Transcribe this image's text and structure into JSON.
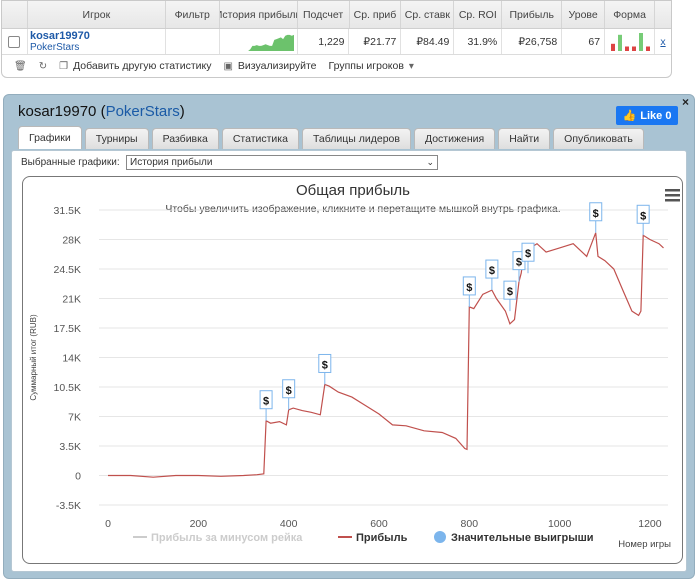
{
  "table": {
    "headers": [
      "Игрок",
      "Фильтр",
      "История прибыли",
      "Подсчет",
      "Ср. приб",
      "Ср. ставк",
      "Ср. ROI",
      "Прибыль",
      "Урове",
      "Форма"
    ],
    "row": {
      "player": "kosar19970",
      "site": "PokerStars",
      "filter": "",
      "count": "1,229",
      "avg_profit": "₽21.77",
      "avg_stake": "₽84.49",
      "avg_roi": "31.9%",
      "profit": "₽26,758",
      "level": "67",
      "close": "x"
    },
    "history_sparkline": [
      0,
      0,
      0,
      0,
      0,
      0,
      0,
      0,
      0,
      0,
      0,
      0,
      0.1,
      0.3,
      0.3,
      0.35,
      0.3,
      0.3,
      0.35,
      0.4,
      0.35,
      0.3,
      0.3,
      0.65,
      0.7,
      0.75,
      0.8,
      0.7,
      0.9,
      0.95,
      0.95,
      0.9,
      0.95
    ],
    "form_bars": [
      {
        "v": 0.4,
        "c": "#d44"
      },
      {
        "v": 0.9,
        "c": "#7c7"
      },
      {
        "v": 0.25,
        "c": "#d44"
      },
      {
        "v": 0.25,
        "c": "#d44"
      },
      {
        "v": 1.0,
        "c": "#7c7"
      },
      {
        "v": 0.25,
        "c": "#d44"
      }
    ]
  },
  "toolbar": {
    "add_stats": "Добавить другую статистику",
    "visualize": "Визуализируйте",
    "groups": "Группы игроков"
  },
  "panel": {
    "player": "kosar19970",
    "site": "PokerStars",
    "like": "Like 0",
    "close": "×",
    "tabs": [
      "Графики",
      "Турниры",
      "Разбивка",
      "Статистика",
      "Таблицы лидеров",
      "Достижения",
      "Найти",
      "Опубликовать"
    ],
    "active_tab": 0,
    "select_label": "Выбранные графики:",
    "select_value": "История прибыли"
  },
  "chart_data": {
    "type": "line",
    "title": "Общая прибыль",
    "subtitle": "Чтобы увеличить изображение, кликните и перетащите мышкой внутрь графика.",
    "xlabel": "Номер игры",
    "ylabel": "Суммарный итог (RUB)",
    "xlim": [
      -20,
      1240
    ],
    "ylim": [
      -3500,
      31500
    ],
    "x_ticks": [
      0,
      200,
      400,
      600,
      800,
      1000,
      1200
    ],
    "y_ticks": [
      "-3.5K",
      "0",
      "3.5K",
      "7K",
      "10.5K",
      "14K",
      "17.5K",
      "21K",
      "24.5K",
      "28K",
      "31.5K"
    ],
    "y_tick_values": [
      -3500,
      0,
      3500,
      7000,
      10500,
      14000,
      17500,
      21000,
      24500,
      28000,
      31500
    ],
    "legend": [
      "Прибыль за минусом рейка",
      "Прибыль",
      "Значительные выигрыши"
    ],
    "legend_colors": [
      "#cccccc",
      "#c0504d",
      "#7cb5ec"
    ],
    "series": [
      {
        "name": "Прибыль",
        "x": [
          0,
          50,
          100,
          150,
          200,
          250,
          300,
          330,
          345,
          350,
          360,
          380,
          395,
          400,
          410,
          430,
          450,
          470,
          480,
          490,
          510,
          540,
          570,
          600,
          630,
          660,
          700,
          740,
          770,
          790,
          795,
          800,
          810,
          830,
          850,
          860,
          880,
          890,
          900,
          910,
          915,
          920,
          935,
          950,
          970,
          1000,
          1030,
          1060,
          1080,
          1085,
          1100,
          1120,
          1140,
          1160,
          1175,
          1180,
          1185,
          1200,
          1220,
          1230
        ],
        "y": [
          0,
          0,
          -200,
          0,
          0,
          -100,
          0,
          100,
          200,
          6500,
          6200,
          6400,
          6000,
          7800,
          8000,
          7700,
          7500,
          7200,
          10800,
          10600,
          9900,
          9300,
          8300,
          7300,
          6000,
          5900,
          5300,
          5100,
          4400,
          3200,
          3100,
          20000,
          19800,
          21500,
          22000,
          21000,
          19500,
          18000,
          18500,
          23000,
          24000,
          26000,
          27000,
          27500,
          26500,
          27000,
          27500,
          26000,
          28800,
          26000,
          25500,
          24500,
          22000,
          19500,
          19000,
          19500,
          28500,
          28000,
          27500,
          27000
        ]
      }
    ],
    "big_wins_x": [
      350,
      400,
      480,
      800,
      850,
      890,
      910,
      930,
      1080,
      1185
    ],
    "big_wins_y": [
      6500,
      7800,
      10800,
      20000,
      22000,
      19500,
      23000,
      24000,
      28800,
      28500
    ]
  }
}
